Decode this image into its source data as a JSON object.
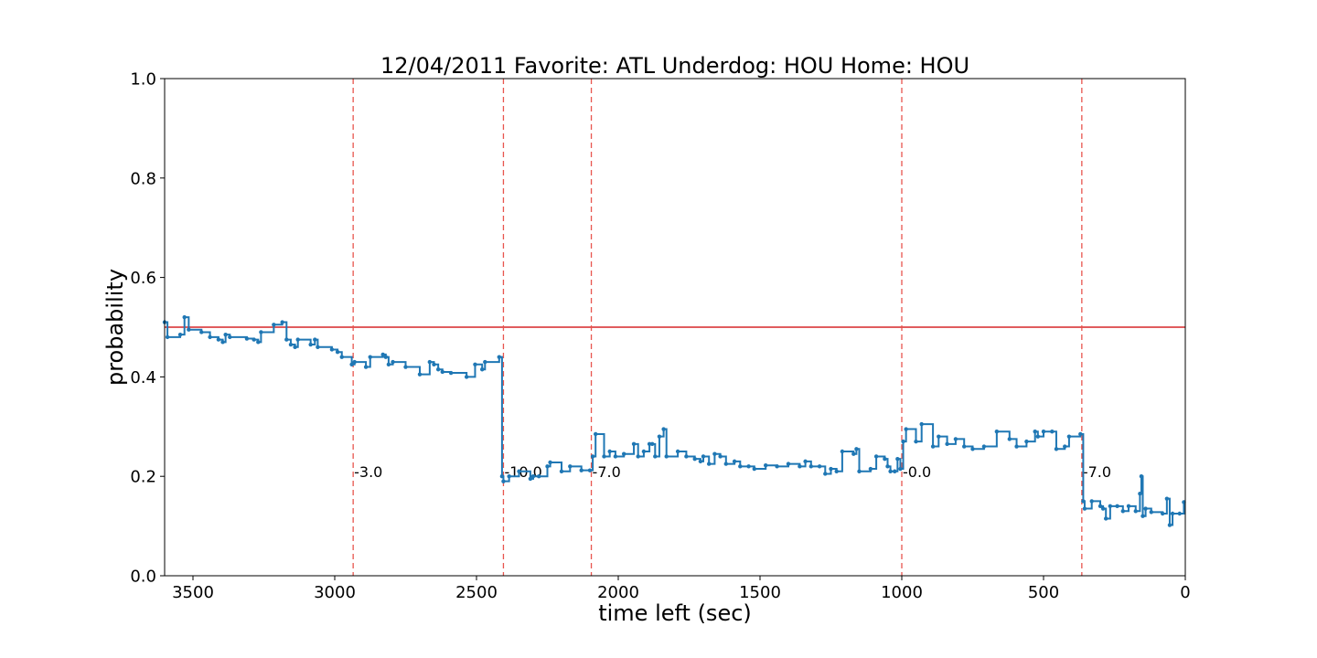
{
  "chart_data": {
    "type": "line",
    "title": "12/04/2011 Favorite: ATL Underdog: HOU Home: HOU",
    "xlabel": "time left (sec)",
    "ylabel": "probability",
    "xlim": [
      3600,
      0
    ],
    "ylim": [
      0,
      1
    ],
    "x_inverted": true,
    "grid": false,
    "legend": "none",
    "xticks": [
      {
        "value": 3500,
        "label": "3500"
      },
      {
        "value": 3000,
        "label": "3000"
      },
      {
        "value": 2500,
        "label": "2500"
      },
      {
        "value": 2000,
        "label": "2000"
      },
      {
        "value": 1500,
        "label": "1500"
      },
      {
        "value": 1000,
        "label": "1000"
      },
      {
        "value": 500,
        "label": "500"
      },
      {
        "value": 0,
        "label": "0"
      }
    ],
    "yticks": [
      {
        "value": 0.0,
        "label": "0.0"
      },
      {
        "value": 0.2,
        "label": "0.2"
      },
      {
        "value": 0.4,
        "label": "0.4"
      },
      {
        "value": 0.6,
        "label": "0.6"
      },
      {
        "value": 0.8,
        "label": "0.8"
      },
      {
        "value": 1.0,
        "label": "1.0"
      }
    ],
    "reference_line": {
      "y": 0.5,
      "color": "#d62728"
    },
    "score_events": [
      {
        "x": 2935,
        "label": "-3.0"
      },
      {
        "x": 2405,
        "label": "-10.0"
      },
      {
        "x": 2095,
        "label": "-7.0"
      },
      {
        "x": 1000,
        "label": "-0.0"
      },
      {
        "x": 365,
        "label": "-7.0"
      }
    ],
    "annotation_y": 0.2,
    "series": [
      {
        "color": "#1f77b4",
        "step": true,
        "points": [
          [
            3600,
            0.51
          ],
          [
            3590,
            0.48
          ],
          [
            3545,
            0.485
          ],
          [
            3530,
            0.52
          ],
          [
            3515,
            0.495
          ],
          [
            3470,
            0.49
          ],
          [
            3440,
            0.48
          ],
          [
            3410,
            0.475
          ],
          [
            3395,
            0.47
          ],
          [
            3385,
            0.485
          ],
          [
            3370,
            0.48
          ],
          [
            3310,
            0.477
          ],
          [
            3285,
            0.475
          ],
          [
            3270,
            0.47
          ],
          [
            3260,
            0.49
          ],
          [
            3215,
            0.505
          ],
          [
            3185,
            0.51
          ],
          [
            3170,
            0.475
          ],
          [
            3155,
            0.465
          ],
          [
            3140,
            0.46
          ],
          [
            3130,
            0.475
          ],
          [
            3085,
            0.465
          ],
          [
            3070,
            0.475
          ],
          [
            3060,
            0.46
          ],
          [
            3010,
            0.455
          ],
          [
            2990,
            0.45
          ],
          [
            2975,
            0.44
          ],
          [
            2940,
            0.425
          ],
          [
            2930,
            0.43
          ],
          [
            2890,
            0.42
          ],
          [
            2875,
            0.44
          ],
          [
            2830,
            0.445
          ],
          [
            2820,
            0.44
          ],
          [
            2810,
            0.425
          ],
          [
            2795,
            0.43
          ],
          [
            2750,
            0.42
          ],
          [
            2700,
            0.405
          ],
          [
            2665,
            0.43
          ],
          [
            2650,
            0.425
          ],
          [
            2635,
            0.415
          ],
          [
            2620,
            0.41
          ],
          [
            2590,
            0.408
          ],
          [
            2535,
            0.4
          ],
          [
            2505,
            0.425
          ],
          [
            2480,
            0.415
          ],
          [
            2470,
            0.43
          ],
          [
            2420,
            0.44
          ],
          [
            2410,
            0.2
          ],
          [
            2405,
            0.19
          ],
          [
            2385,
            0.2
          ],
          [
            2350,
            0.21
          ],
          [
            2310,
            0.195
          ],
          [
            2300,
            0.2
          ],
          [
            2280,
            0.2
          ],
          [
            2250,
            0.22
          ],
          [
            2240,
            0.228
          ],
          [
            2200,
            0.21
          ],
          [
            2170,
            0.22
          ],
          [
            2130,
            0.212
          ],
          [
            2100,
            0.212
          ],
          [
            2090,
            0.24
          ],
          [
            2080,
            0.285
          ],
          [
            2050,
            0.24
          ],
          [
            2030,
            0.25
          ],
          [
            2010,
            0.24
          ],
          [
            1980,
            0.245
          ],
          [
            1945,
            0.265
          ],
          [
            1930,
            0.24
          ],
          [
            1910,
            0.25
          ],
          [
            1890,
            0.265
          ],
          [
            1880,
            0.265
          ],
          [
            1870,
            0.24
          ],
          [
            1855,
            0.28
          ],
          [
            1840,
            0.295
          ],
          [
            1830,
            0.24
          ],
          [
            1790,
            0.25
          ],
          [
            1760,
            0.24
          ],
          [
            1730,
            0.235
          ],
          [
            1710,
            0.23
          ],
          [
            1700,
            0.24
          ],
          [
            1680,
            0.225
          ],
          [
            1660,
            0.245
          ],
          [
            1640,
            0.24
          ],
          [
            1620,
            0.225
          ],
          [
            1590,
            0.23
          ],
          [
            1570,
            0.22
          ],
          [
            1540,
            0.22
          ],
          [
            1520,
            0.215
          ],
          [
            1480,
            0.222
          ],
          [
            1440,
            0.22
          ],
          [
            1400,
            0.225
          ],
          [
            1360,
            0.22
          ],
          [
            1340,
            0.23
          ],
          [
            1320,
            0.22
          ],
          [
            1290,
            0.22
          ],
          [
            1270,
            0.205
          ],
          [
            1250,
            0.215
          ],
          [
            1230,
            0.21
          ],
          [
            1210,
            0.25
          ],
          [
            1170,
            0.245
          ],
          [
            1160,
            0.255
          ],
          [
            1150,
            0.21
          ],
          [
            1110,
            0.215
          ],
          [
            1090,
            0.24
          ],
          [
            1060,
            0.235
          ],
          [
            1050,
            0.22
          ],
          [
            1040,
            0.21
          ],
          [
            1025,
            0.21
          ],
          [
            1015,
            0.235
          ],
          [
            1005,
            0.215
          ],
          [
            995,
            0.27
          ],
          [
            985,
            0.295
          ],
          [
            950,
            0.27
          ],
          [
            930,
            0.305
          ],
          [
            890,
            0.26
          ],
          [
            870,
            0.28
          ],
          [
            840,
            0.265
          ],
          [
            810,
            0.275
          ],
          [
            780,
            0.26
          ],
          [
            750,
            0.255
          ],
          [
            710,
            0.26
          ],
          [
            665,
            0.29
          ],
          [
            620,
            0.275
          ],
          [
            595,
            0.26
          ],
          [
            560,
            0.27
          ],
          [
            530,
            0.29
          ],
          [
            520,
            0.28
          ],
          [
            500,
            0.29
          ],
          [
            470,
            0.29
          ],
          [
            455,
            0.255
          ],
          [
            425,
            0.26
          ],
          [
            410,
            0.28
          ],
          [
            370,
            0.285
          ],
          [
            360,
            0.15
          ],
          [
            355,
            0.135
          ],
          [
            330,
            0.15
          ],
          [
            300,
            0.14
          ],
          [
            290,
            0.135
          ],
          [
            280,
            0.115
          ],
          [
            265,
            0.14
          ],
          [
            240,
            0.14
          ],
          [
            220,
            0.13
          ],
          [
            200,
            0.14
          ],
          [
            175,
            0.13
          ],
          [
            160,
            0.165
          ],
          [
            155,
            0.2
          ],
          [
            150,
            0.12
          ],
          [
            140,
            0.135
          ],
          [
            120,
            0.128
          ],
          [
            80,
            0.125
          ],
          [
            65,
            0.155
          ],
          [
            55,
            0.102
          ],
          [
            45,
            0.125
          ],
          [
            20,
            0.125
          ],
          [
            5,
            0.148
          ]
        ]
      }
    ]
  }
}
